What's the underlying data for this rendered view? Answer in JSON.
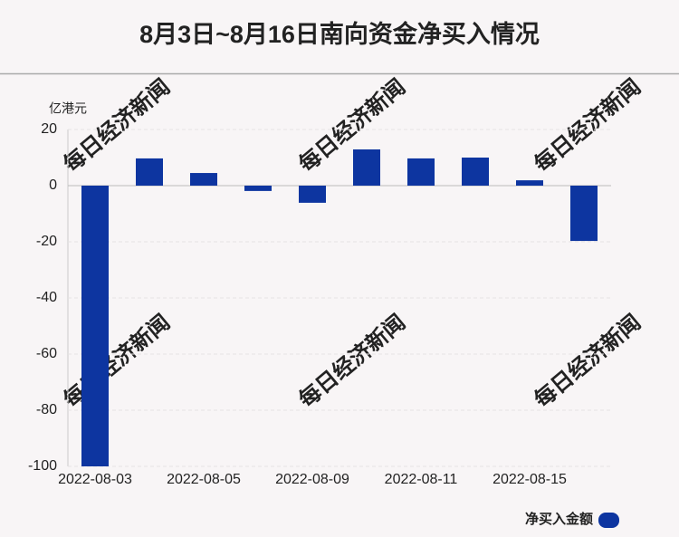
{
  "chart_data": {
    "type": "bar",
    "title": "8月3日~8月16日南向资金净买入情况",
    "y_unit": "亿港元",
    "watermark": "每日经济新闻",
    "categories": [
      "2022-08-03",
      null,
      "2022-08-05",
      null,
      "2022-08-09",
      null,
      "2022-08-11",
      null,
      "2022-08-15",
      null
    ],
    "series": [
      {
        "name": "净买入金额",
        "color": "#0d35a0",
        "values": [
          -100,
          9.7,
          4.5,
          -1.9,
          -6.1,
          12.9,
          9.7,
          10.0,
          1.9,
          -19.7
        ]
      }
    ],
    "ylim": [
      -100,
      20
    ],
    "yticks": [
      20,
      0,
      -20,
      -40,
      -60,
      -80,
      -100
    ],
    "grid": true
  }
}
